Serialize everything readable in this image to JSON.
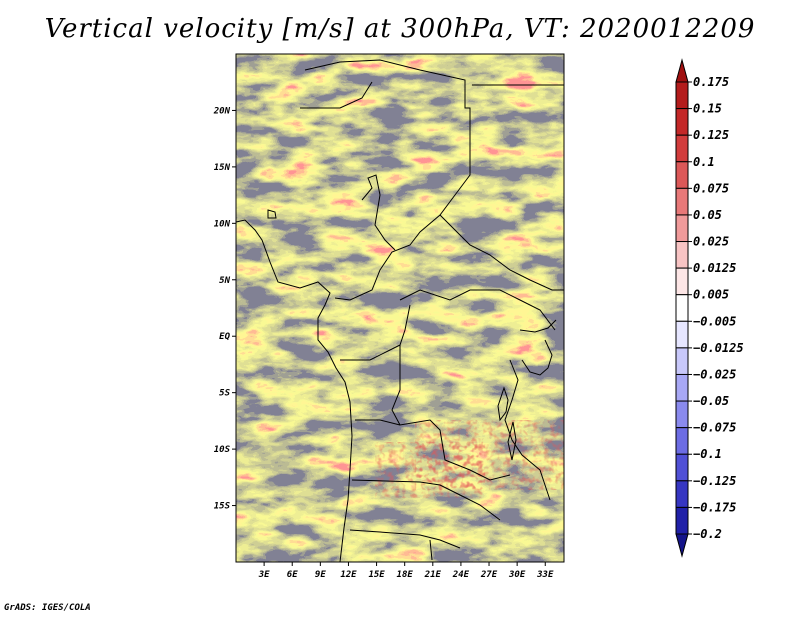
{
  "title": "Vertical velocity [m/s] at 300hPa, VT: 2020012209",
  "credit": "GrADS: IGES/COLA",
  "map": {
    "lat_labels": [
      "20N",
      "15N",
      "10N",
      "5N",
      "EQ",
      "5S",
      "10S",
      "15S"
    ],
    "lat_values": [
      20,
      15,
      10,
      5,
      0,
      -5,
      -10,
      -15
    ],
    "lon_labels": [
      "3E",
      "6E",
      "9E",
      "12E",
      "15E",
      "18E",
      "21E",
      "24E",
      "27E",
      "30E",
      "33E"
    ],
    "lon_values": [
      3,
      6,
      9,
      12,
      15,
      18,
      21,
      24,
      27,
      30,
      33
    ],
    "lon_range": [
      0,
      35
    ],
    "lat_range": [
      -20,
      25
    ]
  },
  "colorbar": {
    "labels": [
      "0.175",
      "0.15",
      "0.125",
      "0.1",
      "0.075",
      "0.05",
      "0.025",
      "0.0125",
      "0.005",
      "−0.005",
      "−0.0125",
      "−0.025",
      "−0.05",
      "−0.075",
      "−0.1",
      "−0.125",
      "−0.175",
      "−0.2"
    ],
    "colors": [
      "#a01010",
      "#b41c1c",
      "#c42828",
      "#d23c3c",
      "#dc5858",
      "#e87878",
      "#f09a9a",
      "#f8c4c4",
      "#fde6e6",
      "#ffffff",
      "#e6e6ff",
      "#c8c8fa",
      "#a8a8f5",
      "#8a8aee",
      "#6c6ce4",
      "#5050d6",
      "#3636c2",
      "#2020a8",
      "#14148a"
    ]
  }
}
